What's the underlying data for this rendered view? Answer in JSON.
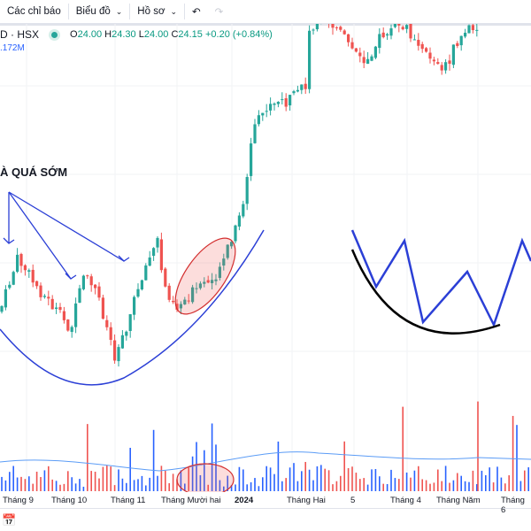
{
  "toolbar": {
    "indicators": "Các chỉ báo",
    "chart": "Biểu đồ",
    "profile": "Hồ sơ",
    "undo_icon": "undo-icon",
    "redo_icon": "redo-icon"
  },
  "legend": {
    "symbol": "D · HSX",
    "o_label": "O",
    "o": "24.00",
    "h_label": "H",
    "h": "24.30",
    "l_label": "L",
    "l": "24.00",
    "c_label": "C",
    "c": "24.15",
    "change": "+0.20 (+0.84%)",
    "volume": ".172M"
  },
  "annotation": {
    "text": "À QUÁ SỚM"
  },
  "xaxis": [
    "Tháng 9",
    "Tháng 10",
    "Tháng 11",
    "Tháng Mười hai",
    "2024",
    "Tháng Hai",
    "5",
    "Tháng 4",
    "Tháng Năm",
    "Tháng 6"
  ],
  "colors": {
    "up": "#26a69a",
    "down": "#ef5350",
    "vol_up": "#2962ff",
    "vol_down": "#ef5350",
    "drawing": "#2b3fd6"
  }
}
